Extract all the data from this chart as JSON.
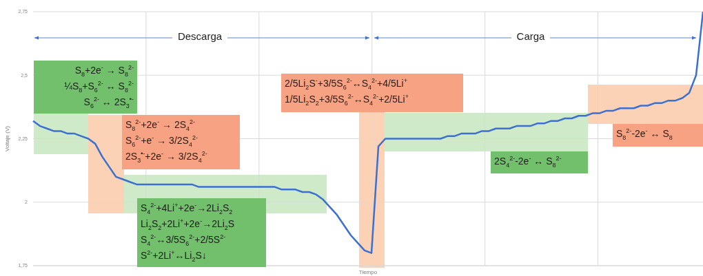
{
  "chart_data": {
    "type": "line",
    "xlabel": "Tiempo",
    "ylabel": "Voltaje (V)",
    "categories": [
      null,
      null,
      null,
      null,
      null,
      null,
      null,
      null,
      null,
      null,
      null,
      null,
      null,
      null,
      null,
      null,
      null,
      null,
      null,
      null,
      null,
      null,
      null,
      null,
      null,
      null,
      null,
      null,
      null,
      null,
      null,
      null,
      null,
      null,
      null,
      null,
      null,
      null,
      null,
      null,
      null,
      null,
      null,
      null,
      null,
      null,
      null,
      null,
      null,
      null,
      null,
      null,
      null,
      null,
      null,
      null,
      null,
      null,
      null,
      null,
      null,
      null,
      null,
      null,
      null,
      null,
      null,
      null,
      null,
      null,
      null,
      null,
      null,
      null,
      null,
      null,
      null,
      null,
      null,
      null,
      null,
      null,
      null,
      null,
      null,
      null,
      null,
      null,
      null,
      null,
      null,
      null,
      null,
      null,
      null,
      null,
      null,
      null
    ],
    "series": [
      {
        "color": "#3b6fd0",
        "values": [
          2.32,
          2.3,
          2.29,
          2.28,
          2.28,
          2.27,
          2.27,
          2.26,
          2.25,
          2.23,
          2.18,
          2.14,
          2.1,
          2.09,
          2.08,
          2.07,
          2.07,
          2.07,
          2.07,
          2.07,
          2.07,
          2.07,
          2.07,
          2.07,
          2.06,
          2.06,
          2.06,
          2.06,
          2.06,
          2.06,
          2.06,
          2.06,
          2.06,
          2.06,
          2.06,
          2.06,
          2.05,
          2.05,
          2.05,
          2.04,
          2.04,
          2.03,
          2.01,
          1.98,
          1.95,
          1.91,
          1.87,
          1.84,
          1.81,
          1.8,
          2.22,
          2.25,
          2.25,
          2.25,
          2.25,
          2.25,
          2.25,
          2.25,
          2.25,
          2.25,
          2.26,
          2.26,
          2.27,
          2.27,
          2.27,
          2.28,
          2.28,
          2.29,
          2.29,
          2.29,
          2.3,
          2.3,
          2.3,
          2.31,
          2.31,
          2.32,
          2.32,
          2.33,
          2.33,
          2.34,
          2.34,
          2.35,
          2.35,
          2.36,
          2.36,
          2.37,
          2.37,
          2.37,
          2.38,
          2.38,
          2.39,
          2.39,
          2.4,
          2.4,
          2.41,
          2.43,
          2.5,
          2.75
        ]
      }
    ],
    "ylim": [
      1.75,
      2.75
    ],
    "yticks": [
      {
        "value": 1.75,
        "label": "1,75"
      },
      2,
      {
        "value": 2.25,
        "label": "2,25"
      },
      {
        "value": 2.5,
        "label": "2,5"
      },
      {
        "value": 2.75,
        "label": "2,75"
      }
    ],
    "tick_labels": "y",
    "grid": true,
    "annotations": [
      "Descarga",
      "Carga",
      "S$_{8}$+2e$^{-}$ → S$_{8}$$^{2-}$\n¼S$_{8}$+S$_{6}$$^{2-}$ ↔ S$_{8}$$^{2-}$\nS$_{6}$$^{2-}$ ↔ 2S$_{3}$$^{•-}$",
      "S$_{8}$$^{2-}$+2e$^{-}$ → 2S$_{4}$$^{2-}$\nS$_{6}$$^{2-}$+e$^{-}$ → 3/2S$_{4}$$^{2-}$\n2S$_{3}$$^{•-}$+2e$^{-}$ → 3/2S$_{4}$$^{2-}$",
      "S$_{4}$$^{2-}$+4Li$^{+}$+2e$^{-}$→2Li$_{2}$S$_{2}$\nLi$_{2}$S$_{2}$+2Li$^{+}$+2e$^{-}$→2Li$_{2}$S\nS$_{4}$$^{2-}$↔3/5S$_{6}$$^{2-}$+2/5S$^{2-}$\nS$^{2-}$+2Li$^{+}$↔Li$_{2}$S↓",
      "2/5Li$_{2}$S$^{-}$+3/5S$_{6}$$^{2-}$↔S$_{4}$$^{2-}$+4/5Li$^{+}$\n1/5Li$_{2}$S$_{2}$+3/5S$_{6}$$^{2-}$↔S$_{4}$$^{2-}$+2/5Li$^{+}$",
      "2S$_{4}$$^{2-}$-2e$^{-}$ ↔ S$_{8}$$^{2-}$",
      "S$_{8}$$^{2-}$-2e$^{-}$ ↔ S$_{8}$"
    ]
  }
}
